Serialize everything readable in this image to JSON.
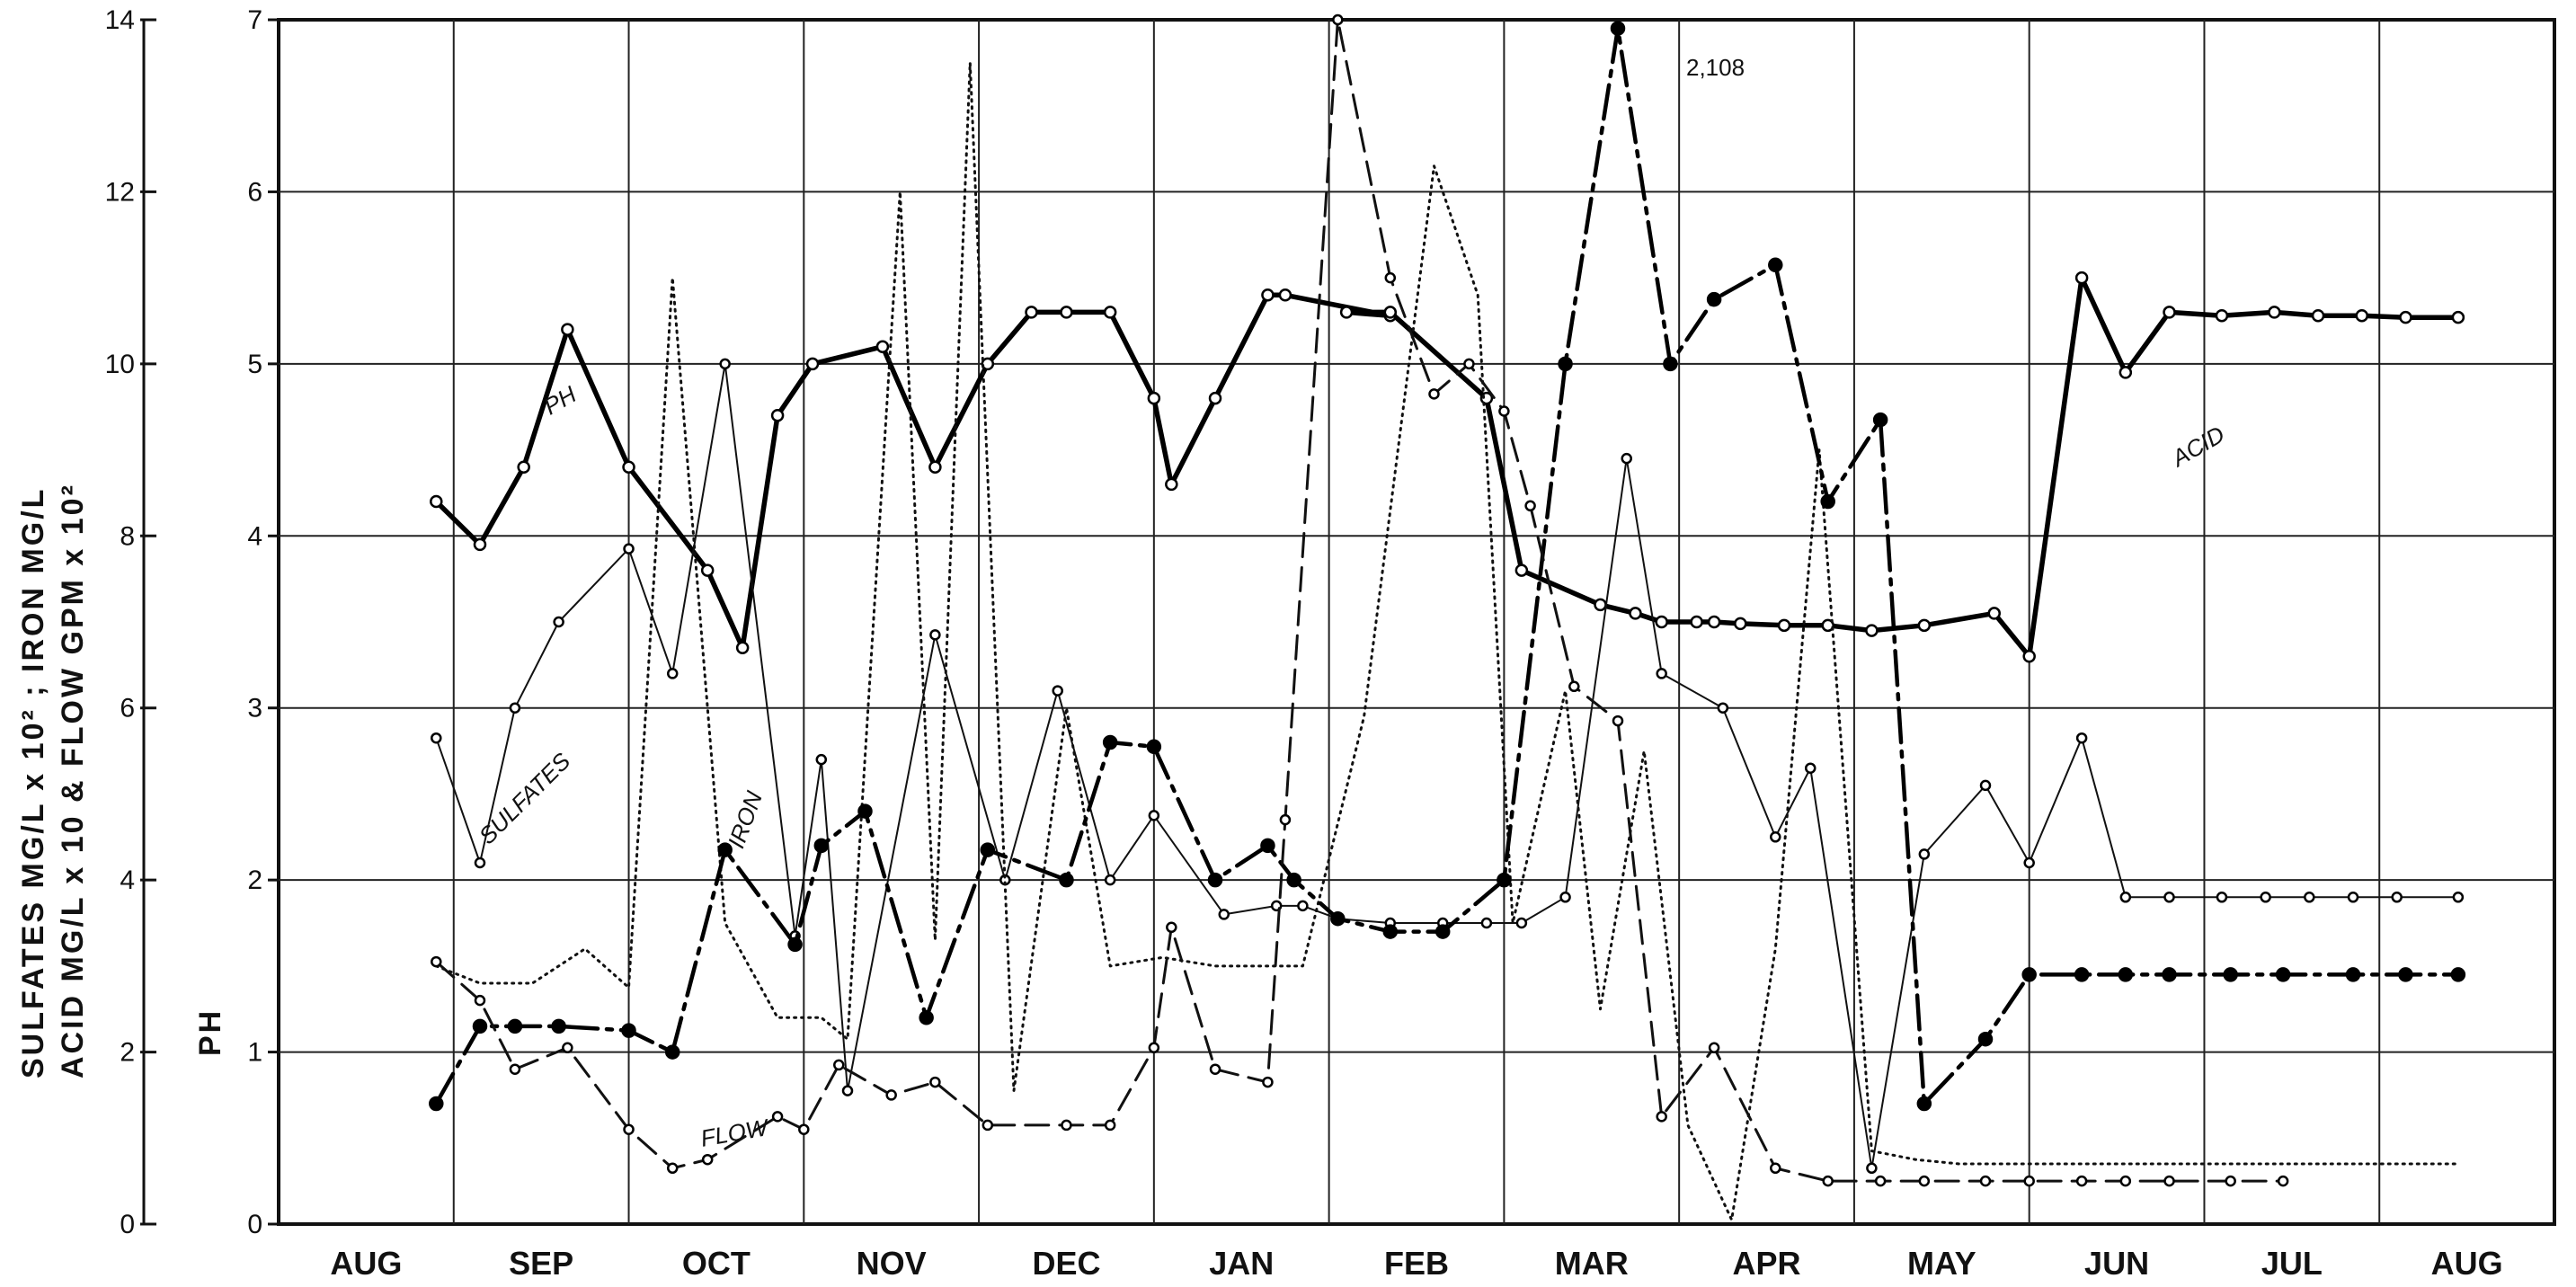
{
  "chart_data": {
    "type": "line",
    "x_labels": [
      "AUG",
      "SEP",
      "OCT",
      "NOV",
      "DEC",
      "JAN",
      "FEB",
      "MAR",
      "APR",
      "MAY",
      "JUN",
      "JUL",
      "AUG"
    ],
    "left_axis": {
      "title_line1": "SULFATES  MG/L x 10²  ;  IRON  MG/L",
      "title_line2": "ACID  MG/L x 10  &  FLOW  GPM x 10²",
      "ylim": [
        0,
        14
      ],
      "ticks": [
        "0",
        "2",
        "4",
        "6",
        "8",
        "10",
        "12",
        "14"
      ]
    },
    "right_axis": {
      "title": "PH",
      "ylim": [
        0,
        7
      ],
      "ticks": [
        "0",
        "1",
        "2",
        "3",
        "4",
        "5",
        "6",
        "7"
      ]
    },
    "series": [
      {
        "name": "PH",
        "axis": "ph",
        "style": "heavy-solid",
        "x": [
          0.9,
          1.15,
          1.4,
          1.65,
          2.0,
          2.45,
          2.65,
          2.85,
          3.05,
          3.45,
          3.75,
          4.05,
          4.3,
          4.5,
          4.75,
          5.0,
          5.1,
          5.35,
          5.65,
          5.75,
          6.35,
          6.1,
          6.35,
          6.9,
          7.1,
          7.55,
          7.75,
          7.9,
          8.1,
          8.2,
          8.35,
          8.6,
          8.85,
          9.1,
          9.4,
          9.8,
          10.0,
          10.3,
          10.55,
          10.8,
          11.1,
          11.4,
          11.65,
          11.9,
          12.15,
          12.45
        ],
        "y": [
          4.2,
          3.95,
          4.4,
          5.2,
          4.4,
          3.8,
          3.35,
          4.7,
          5.0,
          5.1,
          4.4,
          5.0,
          5.3,
          5.3,
          5.3,
          4.8,
          4.3,
          4.8,
          5.4,
          5.4,
          5.28,
          5.3,
          5.3,
          4.8,
          3.8,
          3.6,
          3.55,
          3.5,
          3.5,
          3.5,
          3.49,
          3.48,
          3.48,
          3.45,
          3.48,
          3.55,
          3.3,
          5.5,
          4.95,
          5.3,
          5.28,
          5.3,
          5.28,
          5.28,
          5.27,
          5.27
        ],
        "label": "PH"
      },
      {
        "name": "SULFATES",
        "axis": "left",
        "style": "thin-solid",
        "x": [
          0.9,
          1.15,
          1.35,
          1.6,
          2.0,
          2.25,
          2.55,
          2.95,
          3.1,
          3.25,
          3.75,
          4.15,
          4.45,
          4.75,
          5.0,
          5.4,
          5.7,
          5.85,
          6.05,
          6.35,
          6.65,
          6.9,
          7.1,
          7.35,
          7.7,
          7.9,
          8.25,
          8.55,
          8.75,
          9.1,
          9.4,
          9.75,
          10.0,
          10.3,
          10.55,
          10.8,
          11.1,
          11.35,
          11.6,
          11.85,
          12.1,
          12.45
        ],
        "y": [
          5.65,
          4.2,
          6.0,
          7.0,
          7.85,
          6.4,
          10.0,
          3.35,
          5.4,
          1.55,
          6.85,
          4.0,
          6.2,
          4.0,
          4.75,
          3.6,
          3.7,
          3.7,
          3.55,
          3.5,
          3.5,
          3.5,
          3.5,
          3.8,
          8.9,
          6.4,
          6.0,
          4.5,
          5.3,
          0.65,
          4.3,
          5.1,
          4.2,
          5.65,
          3.8,
          3.8,
          3.8,
          3.8,
          3.8,
          3.8,
          3.8,
          3.8
        ],
        "label": "SULFATES"
      },
      {
        "name": "IRON",
        "axis": "left",
        "style": "dotted",
        "x": [
          0.9,
          1.15,
          1.45,
          1.75,
          2.0,
          2.25,
          2.55,
          2.85,
          3.1,
          3.25,
          3.55,
          3.75,
          3.95,
          4.2,
          4.5,
          4.75,
          5.05,
          5.35,
          5.6,
          5.85,
          6.2,
          6.6,
          6.85,
          7.05,
          7.35,
          7.55,
          7.8,
          8.05,
          8.3,
          8.55,
          8.8,
          9.1,
          9.35,
          9.6,
          9.85,
          10.1,
          10.35,
          10.55,
          10.8,
          11.05,
          11.3,
          11.6,
          11.85,
          12.15,
          12.45
        ],
        "y": [
          3.0,
          2.8,
          2.8,
          3.2,
          2.75,
          11.0,
          3.5,
          2.4,
          2.4,
          2.15,
          12.0,
          3.3,
          13.5,
          1.55,
          6.0,
          3.0,
          3.1,
          3.0,
          3.0,
          3.0,
          5.9,
          12.3,
          10.8,
          3.5,
          6.2,
          2.5,
          5.5,
          1.15,
          0.05,
          3.2,
          9.0,
          0.85,
          0.75,
          0.7,
          0.7,
          0.7,
          0.7,
          0.7,
          0.7,
          0.7,
          0.7,
          0.7,
          0.7,
          0.7,
          0.7
        ],
        "label": "IRON"
      },
      {
        "name": "ACID",
        "axis": "left",
        "style": "dash-dot",
        "x": [
          0.9,
          1.15,
          1.35,
          1.6,
          2.0,
          2.25,
          2.55,
          2.95,
          3.1,
          3.35,
          3.7,
          4.05,
          4.5,
          4.75,
          5.0,
          5.35,
          5.65,
          5.8,
          6.05,
          6.35,
          6.65,
          7.0,
          7.35,
          7.65,
          7.95,
          8.2,
          8.55,
          8.85,
          9.15,
          9.4,
          9.75,
          10.0,
          10.3,
          10.55,
          10.8,
          11.15,
          11.45,
          11.85,
          12.15,
          12.45
        ],
        "y": [
          1.4,
          2.3,
          2.3,
          2.3,
          2.25,
          2.0,
          4.35,
          3.25,
          4.4,
          4.8,
          2.4,
          4.35,
          4.0,
          5.6,
          5.55,
          4.0,
          4.4,
          4.0,
          3.55,
          3.4,
          3.4,
          4.0,
          10.0,
          13.9,
          10.0,
          10.75,
          11.15,
          8.4,
          9.35,
          1.4,
          2.15,
          2.9,
          2.9,
          2.9,
          2.9,
          2.9,
          2.9,
          2.9,
          2.9,
          2.9
        ],
        "label": "ACID",
        "annotation": ""
      },
      {
        "name": "FLOW",
        "axis": "left",
        "style": "dashed",
        "x": [
          0.9,
          1.15,
          1.35,
          1.65,
          2.0,
          2.25,
          2.45,
          2.85,
          3.0,
          3.2,
          3.5,
          3.75,
          4.05,
          4.5,
          4.75,
          5.0,
          5.1,
          5.35,
          5.65,
          5.75,
          6.05,
          6.35,
          6.6,
          6.8,
          7.0,
          7.15,
          7.4,
          7.65,
          7.9,
          8.2,
          8.55,
          8.85,
          9.15,
          9.4,
          9.75,
          10.0,
          10.3,
          10.55,
          10.8,
          11.15,
          11.45
        ],
        "y": [
          3.05,
          2.6,
          1.8,
          2.05,
          1.1,
          0.65,
          0.75,
          1.25,
          1.1,
          1.85,
          1.5,
          1.65,
          1.15,
          1.15,
          1.15,
          2.05,
          3.45,
          1.8,
          1.65,
          4.7,
          14.0,
          11.0,
          9.65,
          10.0,
          9.45,
          8.35,
          6.25,
          5.85,
          1.25,
          2.05,
          0.65,
          0.5,
          0.5,
          0.5,
          0.5,
          0.5,
          0.5,
          0.5,
          0.5,
          0.5,
          0.5
        ],
        "label": "FLOW"
      }
    ],
    "annotations": [
      "2,108"
    ],
    "grid": true
  }
}
